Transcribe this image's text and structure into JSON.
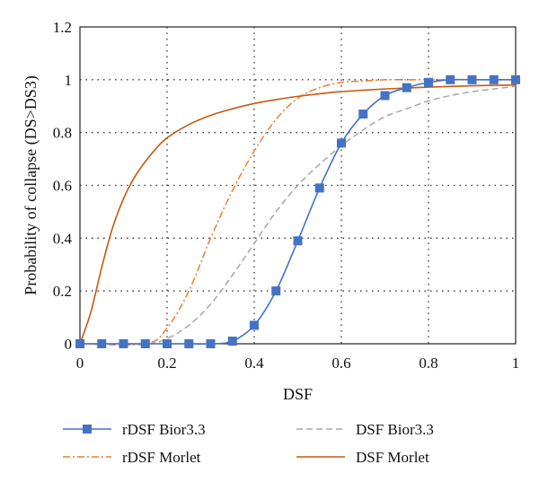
{
  "chart_data": {
    "type": "line",
    "xlabel": "DSF",
    "ylabel": "Probability of collapse (DS>DS3)",
    "xlim": [
      0,
      1
    ],
    "ylim": [
      0,
      1.2
    ],
    "x_ticks": [
      "0",
      "0.2",
      "0.4",
      "0.6",
      "0.8",
      "1"
    ],
    "y_ticks": [
      "0",
      "0.2",
      "0.4",
      "0.6",
      "0.8",
      "1",
      "1.2"
    ],
    "grid": "dotted",
    "legend_position": "bottom",
    "series": [
      {
        "name": "rDSF Bior3.3",
        "color": "#4472C4",
        "line_style": "solid",
        "marker": "square",
        "x": [
          0,
          0.05,
          0.1,
          0.15,
          0.2,
          0.25,
          0.3,
          0.35,
          0.4,
          0.45,
          0.5,
          0.55,
          0.6,
          0.65,
          0.7,
          0.75,
          0.8,
          0.85,
          0.9,
          0.95,
          1.0
        ],
        "y": [
          0,
          0,
          0,
          0,
          0,
          0,
          0,
          0.01,
          0.07,
          0.2,
          0.39,
          0.59,
          0.76,
          0.87,
          0.94,
          0.97,
          0.99,
          1.0,
          1.0,
          1.0,
          1.0
        ]
      },
      {
        "name": "DSF Bior3.3",
        "color": "#A6A6A6",
        "line_style": "dashed",
        "marker": "none",
        "x": [
          0,
          0.15,
          0.2,
          0.25,
          0.3,
          0.35,
          0.4,
          0.45,
          0.5,
          0.55,
          0.6,
          0.65,
          0.7,
          0.75,
          0.8,
          0.85,
          0.9,
          0.95,
          1.0
        ],
        "y": [
          0,
          0,
          0.02,
          0.07,
          0.15,
          0.26,
          0.38,
          0.5,
          0.6,
          0.68,
          0.75,
          0.81,
          0.86,
          0.89,
          0.92,
          0.94,
          0.955,
          0.965,
          0.975
        ]
      },
      {
        "name": "rDSF Morlet",
        "color": "#ED7D31",
        "line_style": "dash-dot",
        "marker": "none",
        "x": [
          0,
          0.15,
          0.2,
          0.25,
          0.3,
          0.35,
          0.4,
          0.45,
          0.5,
          0.55,
          0.6,
          0.65,
          0.7,
          0.75,
          0.8,
          0.9,
          1.0
        ],
        "y": [
          0,
          0,
          0.06,
          0.2,
          0.4,
          0.58,
          0.73,
          0.85,
          0.93,
          0.97,
          0.99,
          0.995,
          1.0,
          1.0,
          1.0,
          1.0,
          1.0
        ]
      },
      {
        "name": "DSF Morlet",
        "color": "#C55A11",
        "line_style": "solid",
        "marker": "none",
        "x": [
          0,
          0.025,
          0.05,
          0.075,
          0.1,
          0.125,
          0.15,
          0.175,
          0.2,
          0.25,
          0.3,
          0.35,
          0.4,
          0.45,
          0.5,
          0.55,
          0.6,
          0.7,
          0.8,
          0.9,
          1.0
        ],
        "y": [
          0,
          0.12,
          0.29,
          0.44,
          0.55,
          0.63,
          0.69,
          0.74,
          0.78,
          0.83,
          0.865,
          0.89,
          0.91,
          0.925,
          0.937,
          0.947,
          0.955,
          0.965,
          0.972,
          0.977,
          0.98
        ]
      }
    ]
  }
}
